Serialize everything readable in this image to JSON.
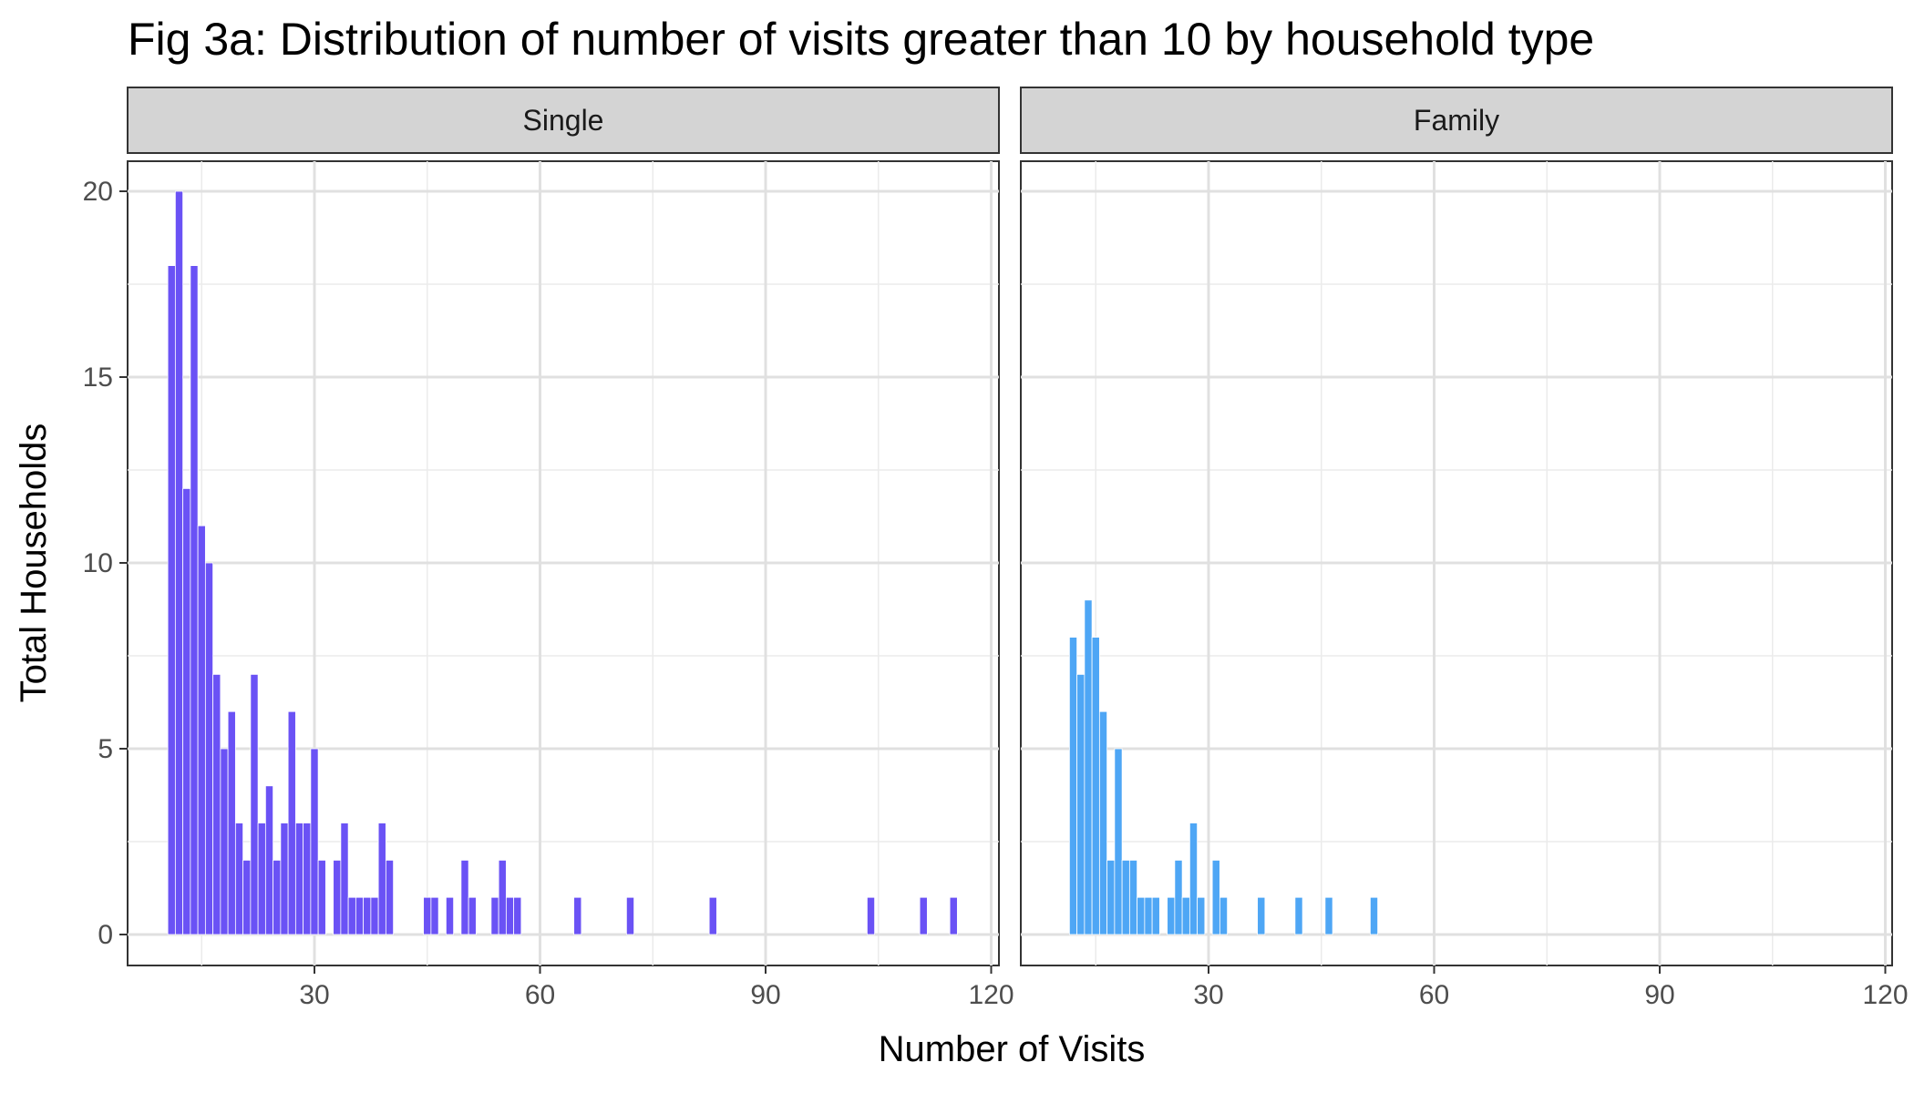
{
  "chart_data": {
    "type": "bar",
    "title": "Fig 3a: Distribution of number of visits greater than 10 by household type",
    "xlabel": "Number of Visits",
    "ylabel": "Total Households",
    "xlim": [
      7,
      120
    ],
    "ylim": [
      0,
      20
    ],
    "x_ticks": [
      "30",
      "60",
      "90",
      "120"
    ],
    "y_ticks": [
      "0",
      "5",
      "10",
      "15",
      "20"
    ],
    "grid": true,
    "facets": [
      {
        "name": "Single",
        "color": "#6a52f5",
        "points": [
          {
            "x": 11,
            "y": 18
          },
          {
            "x": 12,
            "y": 20
          },
          {
            "x": 13,
            "y": 12
          },
          {
            "x": 14,
            "y": 18
          },
          {
            "x": 15,
            "y": 11
          },
          {
            "x": 16,
            "y": 10
          },
          {
            "x": 17,
            "y": 7
          },
          {
            "x": 18,
            "y": 5
          },
          {
            "x": 19,
            "y": 6
          },
          {
            "x": 20,
            "y": 3
          },
          {
            "x": 21,
            "y": 2
          },
          {
            "x": 22,
            "y": 7
          },
          {
            "x": 23,
            "y": 3
          },
          {
            "x": 24,
            "y": 4
          },
          {
            "x": 25,
            "y": 2
          },
          {
            "x": 26,
            "y": 3
          },
          {
            "x": 27,
            "y": 6
          },
          {
            "x": 28,
            "y": 3
          },
          {
            "x": 29,
            "y": 3
          },
          {
            "x": 30,
            "y": 5
          },
          {
            "x": 31,
            "y": 2
          },
          {
            "x": 33,
            "y": 2
          },
          {
            "x": 34,
            "y": 3
          },
          {
            "x": 35,
            "y": 1
          },
          {
            "x": 36,
            "y": 1
          },
          {
            "x": 37,
            "y": 1
          },
          {
            "x": 38,
            "y": 1
          },
          {
            "x": 39,
            "y": 3
          },
          {
            "x": 40,
            "y": 2
          },
          {
            "x": 45,
            "y": 1
          },
          {
            "x": 46,
            "y": 1
          },
          {
            "x": 48,
            "y": 1
          },
          {
            "x": 50,
            "y": 2
          },
          {
            "x": 51,
            "y": 1
          },
          {
            "x": 54,
            "y": 1
          },
          {
            "x": 55,
            "y": 2
          },
          {
            "x": 56,
            "y": 1
          },
          {
            "x": 57,
            "y": 1
          },
          {
            "x": 65,
            "y": 1
          },
          {
            "x": 72,
            "y": 1
          },
          {
            "x": 83,
            "y": 1
          },
          {
            "x": 104,
            "y": 1
          },
          {
            "x": 111,
            "y": 1
          },
          {
            "x": 115,
            "y": 1
          }
        ]
      },
      {
        "name": "Family",
        "color": "#4ea6f5",
        "points": [
          {
            "x": 12,
            "y": 8
          },
          {
            "x": 13,
            "y": 7
          },
          {
            "x": 14,
            "y": 9
          },
          {
            "x": 15,
            "y": 8
          },
          {
            "x": 16,
            "y": 6
          },
          {
            "x": 17,
            "y": 2
          },
          {
            "x": 18,
            "y": 5
          },
          {
            "x": 19,
            "y": 2
          },
          {
            "x": 20,
            "y": 2
          },
          {
            "x": 21,
            "y": 1
          },
          {
            "x": 22,
            "y": 1
          },
          {
            "x": 23,
            "y": 1
          },
          {
            "x": 25,
            "y": 1
          },
          {
            "x": 26,
            "y": 2
          },
          {
            "x": 27,
            "y": 1
          },
          {
            "x": 28,
            "y": 3
          },
          {
            "x": 29,
            "y": 1
          },
          {
            "x": 31,
            "y": 2
          },
          {
            "x": 32,
            "y": 1
          },
          {
            "x": 37,
            "y": 1
          },
          {
            "x": 42,
            "y": 1
          },
          {
            "x": 46,
            "y": 1
          },
          {
            "x": 52,
            "y": 1
          }
        ]
      }
    ]
  }
}
